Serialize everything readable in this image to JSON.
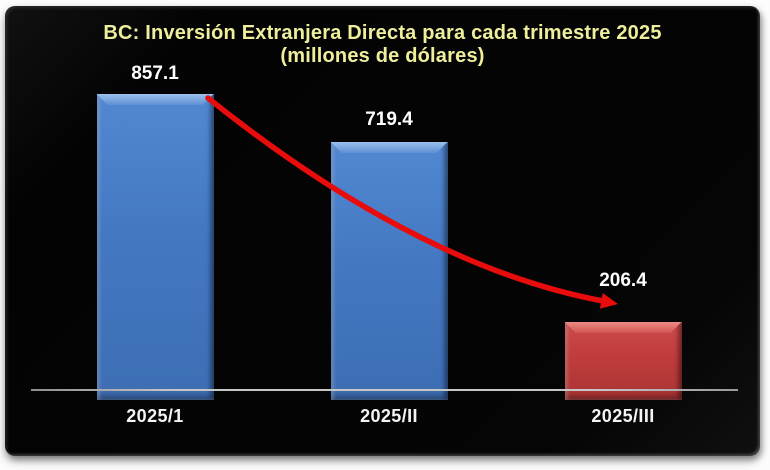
{
  "title": "BC: Inversión Extranjera Directa para cada trimestre 2025",
  "subtitle": "(millones de dólares)",
  "colors": {
    "page_background": "#FCFCFC",
    "chart_background": "#050505",
    "title_text": "#EFEF9B",
    "value_label_text": "#FFFFFF",
    "category_label_text": "#F4F4F4",
    "axis_line": "#BDBDBD",
    "bar_blue": "#4478C2",
    "bar_red": "#C03C3C",
    "trend_arrow": "#E80C0C"
  },
  "chart_data": {
    "type": "bar",
    "title": "BC: Inversión Extranjera Directa para cada trimestre 2025",
    "subtitle": "(millones de dólares)",
    "categories": [
      "2025/1",
      "2025/II",
      "2025/III"
    ],
    "values": [
      857.1,
      719.4,
      206.4
    ],
    "data_labels": [
      "857.1",
      "719.4",
      "206.4"
    ],
    "bar_colors": [
      "blue",
      "blue",
      "red"
    ],
    "ylim": [
      0,
      900
    ],
    "grid": false,
    "legend": false,
    "xlabel": "",
    "ylabel": "",
    "annotations": [
      "red curved arrow sweeping downward from the top of the first bar to the top of the third bar, indicating declining trend"
    ]
  }
}
